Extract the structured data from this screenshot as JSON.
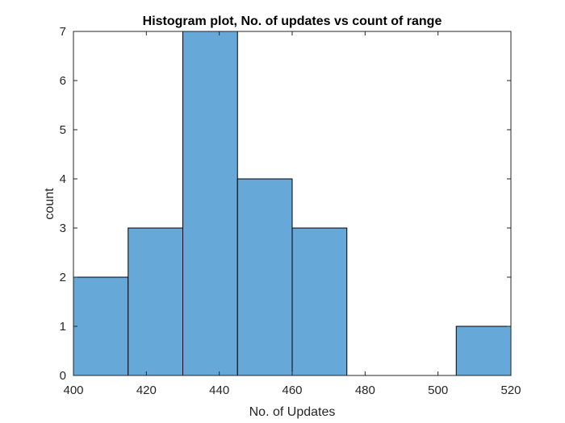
{
  "chart_data": {
    "type": "bar",
    "title": "Histogram plot, No. of updates vs count of range",
    "xlabel": "No. of Updates",
    "ylabel": "count",
    "xlim": [
      400,
      520
    ],
    "ylim": [
      0,
      7
    ],
    "xticks": [
      "400",
      "420",
      "440",
      "460",
      "480",
      "500",
      "520"
    ],
    "yticks": [
      "0",
      "1",
      "2",
      "3",
      "4",
      "5",
      "6",
      "7"
    ],
    "bin_edges": [
      400,
      415,
      430,
      445,
      460,
      475,
      490,
      505,
      520
    ],
    "counts": [
      2,
      3,
      7,
      4,
      3,
      0,
      0,
      1
    ],
    "grid": false,
    "bar_color": "#66a9d8",
    "edge_color": "#000000"
  }
}
